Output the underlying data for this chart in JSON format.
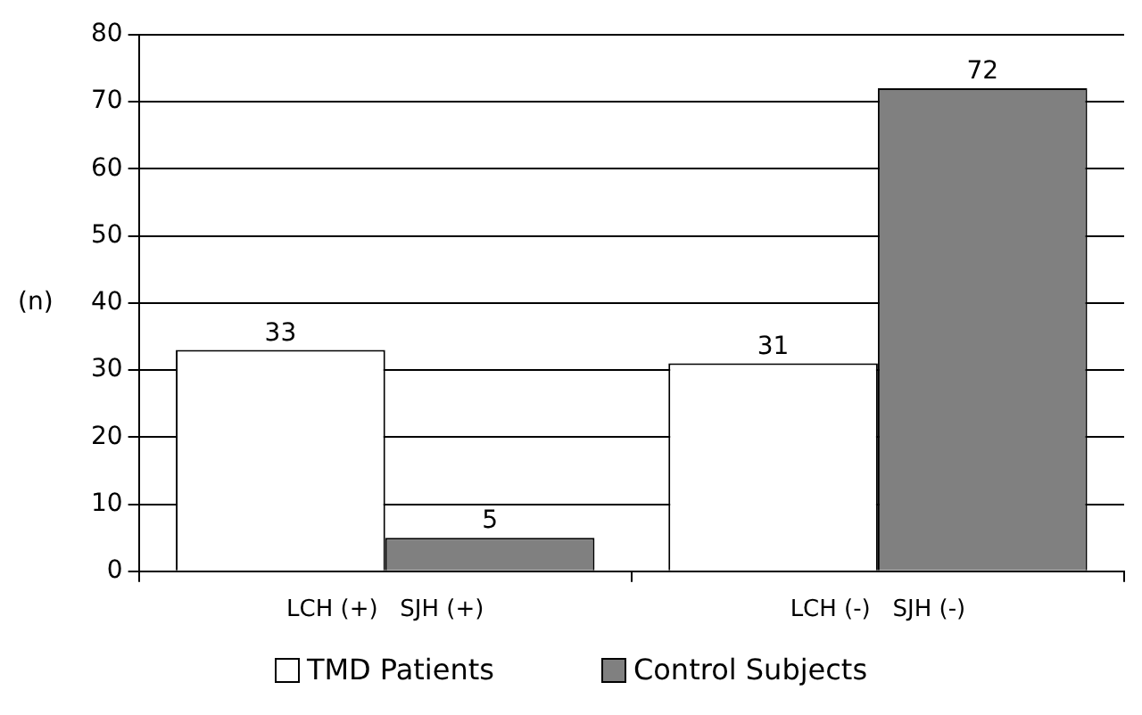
{
  "chart_data": {
    "type": "bar",
    "ylabel": "(n)",
    "categories": [
      "LCH (+)   SJH (+)",
      "LCH (-)   SJH (-)"
    ],
    "series": [
      {
        "name": "TMD Patients",
        "color": "#ffffff",
        "values": [
          33,
          31
        ]
      },
      {
        "name": "Control Subjects",
        "color": "#808080",
        "values": [
          5,
          72
        ]
      }
    ],
    "ylim": [
      0,
      80
    ],
    "yticks": [
      0,
      10,
      20,
      30,
      40,
      50,
      60,
      70,
      80
    ],
    "grid": "y",
    "legend": "bottom",
    "data_labels": true
  }
}
